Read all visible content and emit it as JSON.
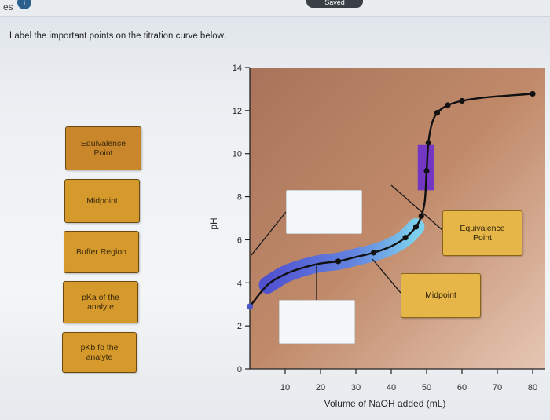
{
  "topbar": {
    "left_text": "es",
    "info_glyph": "i",
    "saved_label": "Saved"
  },
  "instruction": "Label the important points on the titration curve below.",
  "bank_chips": [
    {
      "id": "equivalence",
      "label_lines": [
        "Equivalence",
        "Point"
      ]
    },
    {
      "id": "midpoint",
      "label_lines": [
        "Midpoint"
      ]
    },
    {
      "id": "buffer",
      "label_lines": [
        "Buffer Region"
      ]
    },
    {
      "id": "pka",
      "label_lines": [
        "pKa of the",
        "analyte"
      ]
    },
    {
      "id": "pkb",
      "label_lines": [
        "pKb fo the",
        "analyte"
      ]
    }
  ],
  "placed_chips": {
    "equivalence": {
      "label_lines": [
        "Equivalence",
        "Point"
      ]
    },
    "midpoint": {
      "label_lines": [
        "Midpoint"
      ]
    }
  },
  "chart_data": {
    "type": "line",
    "xlabel": "Volume of NaOH added (mL)",
    "ylabel": "pH",
    "x_ticks": [
      10,
      20,
      30,
      40,
      50,
      60,
      70,
      80
    ],
    "y_ticks": [
      0,
      2,
      4,
      6,
      8,
      10,
      12,
      14
    ],
    "xlim": [
      0,
      80
    ],
    "ylim": [
      0,
      14
    ],
    "series": [
      {
        "x": [
          0,
          5,
          10,
          15,
          20,
          25,
          30,
          35,
          40,
          44,
          47,
          48.5,
          49.5,
          50,
          50.5,
          51.5,
          53,
          56,
          60,
          65,
          70,
          75,
          80
        ],
        "y": [
          2.9,
          3.9,
          4.4,
          4.7,
          4.9,
          5.0,
          5.2,
          5.4,
          5.7,
          6.1,
          6.6,
          7.1,
          7.8,
          9.2,
          10.5,
          11.4,
          11.9,
          12.25,
          12.45,
          12.58,
          12.66,
          12.72,
          12.78
        ]
      }
    ],
    "markers": {
      "x": [
        0,
        25,
        35,
        44,
        47,
        48.5,
        50,
        50.5,
        53,
        56,
        60,
        80
      ],
      "y": [
        2.9,
        5.0,
        5.4,
        6.1,
        6.6,
        7.1,
        9.2,
        10.5,
        11.9,
        12.25,
        12.45,
        12.78
      ]
    },
    "highlights": {
      "buffer_band": {
        "x_start": 1,
        "x_end": 47
      },
      "equivalence_box": {
        "x": [
          47.5,
          52
        ],
        "y": [
          8.3,
          10.4
        ]
      }
    },
    "colors": {
      "background": "#b98062",
      "curve": "#111111",
      "buffer_band": "#5e6fe0",
      "buffer_band_end": "#6fc8ef",
      "equivalence_box": "#6f33c8",
      "chip_fill": "#d69a2c",
      "chip_border": "#6a4a12"
    }
  }
}
